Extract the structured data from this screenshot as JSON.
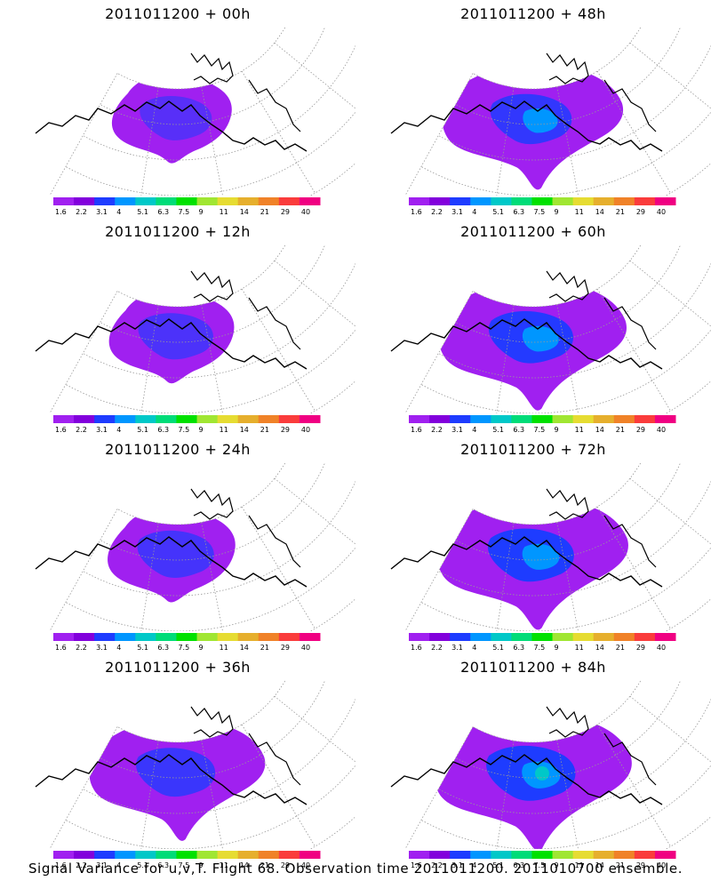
{
  "panels": [
    {
      "title": "2011011200 + 00h",
      "intensity": 0.15
    },
    {
      "title": "2011011200 + 48h",
      "intensity": 0.45
    },
    {
      "title": "2011011200 + 12h",
      "intensity": 0.25
    },
    {
      "title": "2011011200 + 60h",
      "intensity": 0.55
    },
    {
      "title": "2011011200 + 24h",
      "intensity": 0.3
    },
    {
      "title": "2011011200 + 72h",
      "intensity": 0.6
    },
    {
      "title": "2011011200 + 36h",
      "intensity": 0.38
    },
    {
      "title": "2011011200 + 84h",
      "intensity": 0.7
    }
  ],
  "colorbar": {
    "labels": [
      "1.6",
      "2.2",
      "3.1",
      "4",
      "5.1",
      "6.3",
      "7.5",
      "9",
      "11",
      "14",
      "21",
      "29",
      "40"
    ],
    "colors": [
      "#a020f0",
      "#8200dc",
      "#1e3cff",
      "#0096ff",
      "#00c8c8",
      "#00dc78",
      "#00e100",
      "#a0e632",
      "#e6dc32",
      "#e6af2d",
      "#f08228",
      "#fa3c3c",
      "#f00082"
    ]
  },
  "caption": "Signal Variance for u,v,T. Flight 68. Observation time 2011011200. 2011010700 ensemble."
}
